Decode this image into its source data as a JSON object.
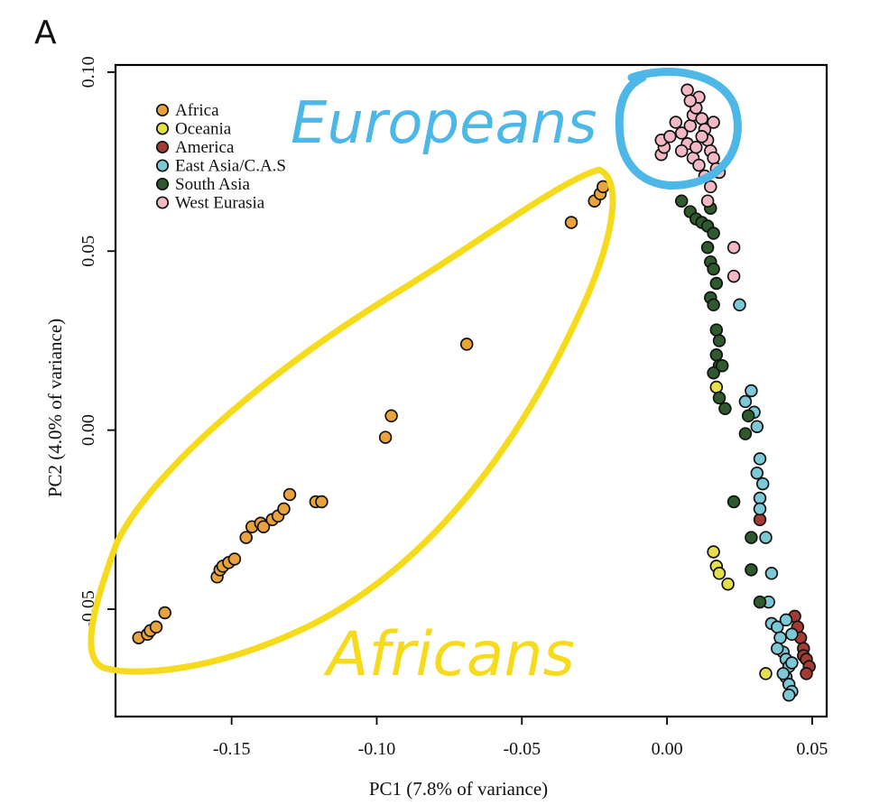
{
  "panel_label": "A",
  "chart_data": {
    "type": "scatter",
    "xlabel": "PC1 (7.8% of variance)",
    "ylabel": "PC2 (4.0% of variance)",
    "xlim": [
      -0.19,
      0.055
    ],
    "ylim": [
      -0.08,
      0.102
    ],
    "xticks": [
      -0.15,
      -0.1,
      -0.05,
      0.0,
      0.05
    ],
    "xtick_labels": [
      "-0.15",
      "-0.10",
      "-0.05",
      "0.00",
      "0.05"
    ],
    "yticks": [
      -0.05,
      0.0,
      0.05,
      0.1
    ],
    "ytick_labels": [
      "-0.05",
      "0.00",
      "0.05",
      "0.10"
    ],
    "grid": false,
    "legend_position": "top-left",
    "series": [
      {
        "name": "Africa",
        "color": "#E8A33D",
        "points": [
          [
            -0.182,
            -0.058
          ],
          [
            -0.179,
            -0.057
          ],
          [
            -0.178,
            -0.056
          ],
          [
            -0.176,
            -0.055
          ],
          [
            -0.173,
            -0.051
          ],
          [
            -0.155,
            -0.041
          ],
          [
            -0.154,
            -0.039
          ],
          [
            -0.153,
            -0.038
          ],
          [
            -0.151,
            -0.037
          ],
          [
            -0.149,
            -0.036
          ],
          [
            -0.145,
            -0.03
          ],
          [
            -0.143,
            -0.027
          ],
          [
            -0.14,
            -0.026
          ],
          [
            -0.139,
            -0.027
          ],
          [
            -0.136,
            -0.025
          ],
          [
            -0.134,
            -0.024
          ],
          [
            -0.132,
            -0.022
          ],
          [
            -0.13,
            -0.018
          ],
          [
            -0.121,
            -0.02
          ],
          [
            -0.119,
            -0.02
          ],
          [
            -0.097,
            -0.002
          ],
          [
            -0.095,
            0.004
          ],
          [
            -0.069,
            0.024
          ],
          [
            -0.033,
            0.058
          ],
          [
            -0.025,
            0.064
          ],
          [
            -0.023,
            0.066
          ],
          [
            -0.022,
            0.068
          ]
        ]
      },
      {
        "name": "Oceania",
        "color": "#E6DF4A",
        "points": [
          [
            0.017,
            0.012
          ],
          [
            0.016,
            -0.034
          ],
          [
            0.017,
            -0.038
          ],
          [
            0.018,
            -0.04
          ],
          [
            0.021,
            -0.043
          ],
          [
            0.034,
            -0.068
          ]
        ]
      },
      {
        "name": "America",
        "color": "#A33A33",
        "points": [
          [
            0.032,
            -0.025
          ],
          [
            0.044,
            -0.052
          ],
          [
            0.045,
            -0.055
          ],
          [
            0.046,
            -0.058
          ],
          [
            0.047,
            -0.061
          ],
          [
            0.047,
            -0.063
          ],
          [
            0.048,
            -0.064
          ],
          [
            0.049,
            -0.066
          ],
          [
            0.048,
            -0.068
          ]
        ]
      },
      {
        "name": "East Asia/C.A.S",
        "color": "#7CC8D6",
        "points": [
          [
            0.025,
            0.035
          ],
          [
            0.027,
            0.008
          ],
          [
            0.029,
            0.011
          ],
          [
            0.03,
            0.005
          ],
          [
            0.031,
            0.001
          ],
          [
            0.032,
            -0.008
          ],
          [
            0.031,
            -0.012
          ],
          [
            0.033,
            -0.015
          ],
          [
            0.032,
            -0.019
          ],
          [
            0.032,
            -0.022
          ],
          [
            0.034,
            -0.03
          ],
          [
            0.036,
            -0.04
          ],
          [
            0.035,
            -0.048
          ],
          [
            0.036,
            -0.054
          ],
          [
            0.038,
            -0.055
          ],
          [
            0.039,
            -0.058
          ],
          [
            0.04,
            -0.062
          ],
          [
            0.041,
            -0.064
          ],
          [
            0.042,
            -0.066
          ],
          [
            0.041,
            -0.069
          ],
          [
            0.042,
            -0.071
          ],
          [
            0.043,
            -0.073
          ],
          [
            0.038,
            -0.061
          ],
          [
            0.041,
            -0.053
          ],
          [
            0.043,
            -0.057
          ],
          [
            0.042,
            -0.074
          ],
          [
            0.04,
            -0.068
          ],
          [
            0.043,
            -0.065
          ]
        ]
      },
      {
        "name": "South Asia",
        "color": "#2E5A2E",
        "points": [
          [
            0.005,
            0.064
          ],
          [
            0.008,
            0.061
          ],
          [
            0.01,
            0.059
          ],
          [
            0.012,
            0.058
          ],
          [
            0.014,
            0.057
          ],
          [
            0.015,
            0.062
          ],
          [
            0.016,
            0.055
          ],
          [
            0.014,
            0.051
          ],
          [
            0.015,
            0.047
          ],
          [
            0.016,
            0.045
          ],
          [
            0.017,
            0.041
          ],
          [
            0.015,
            0.037
          ],
          [
            0.016,
            0.035
          ],
          [
            0.017,
            0.028
          ],
          [
            0.018,
            0.025
          ],
          [
            0.017,
            0.021
          ],
          [
            0.018,
            0.018
          ],
          [
            0.016,
            0.016
          ],
          [
            0.019,
            0.018
          ],
          [
            0.018,
            0.009
          ],
          [
            0.02,
            0.006
          ],
          [
            0.028,
            0.004
          ],
          [
            0.027,
            -0.001
          ],
          [
            0.023,
            -0.02
          ],
          [
            0.029,
            -0.03
          ],
          [
            0.029,
            -0.039
          ],
          [
            0.032,
            -0.048
          ]
        ]
      },
      {
        "name": "West Eurasia",
        "color": "#F2B9C4",
        "points": [
          [
            -0.002,
            0.077
          ],
          [
            -0.001,
            0.079
          ],
          [
            -0.002,
            0.081
          ],
          [
            0.001,
            0.082
          ],
          [
            0.003,
            0.086
          ],
          [
            0.005,
            0.083
          ],
          [
            0.007,
            0.08
          ],
          [
            0.008,
            0.085
          ],
          [
            0.009,
            0.088
          ],
          [
            0.01,
            0.09
          ],
          [
            0.011,
            0.093
          ],
          [
            0.012,
            0.087
          ],
          [
            0.013,
            0.084
          ],
          [
            0.014,
            0.081
          ],
          [
            0.015,
            0.078
          ],
          [
            0.016,
            0.076
          ],
          [
            0.017,
            0.073
          ],
          [
            0.009,
            0.076
          ],
          [
            0.011,
            0.074
          ],
          [
            0.013,
            0.071
          ],
          [
            0.007,
            0.095
          ],
          [
            0.008,
            0.092
          ],
          [
            0.01,
            0.079
          ],
          [
            0.015,
            0.068
          ],
          [
            0.014,
            0.064
          ],
          [
            0.023,
            0.051
          ],
          [
            0.023,
            0.043
          ],
          [
            0.012,
            0.082
          ],
          [
            0.005,
            0.078
          ],
          [
            0.016,
            0.086
          ],
          [
            0.018,
            0.072
          ]
        ]
      }
    ]
  },
  "annotations": {
    "europeans": "Europeans",
    "africans": "Africans",
    "europeans_color": "#4DB8E8",
    "africans_color": "#F5DB1C"
  }
}
